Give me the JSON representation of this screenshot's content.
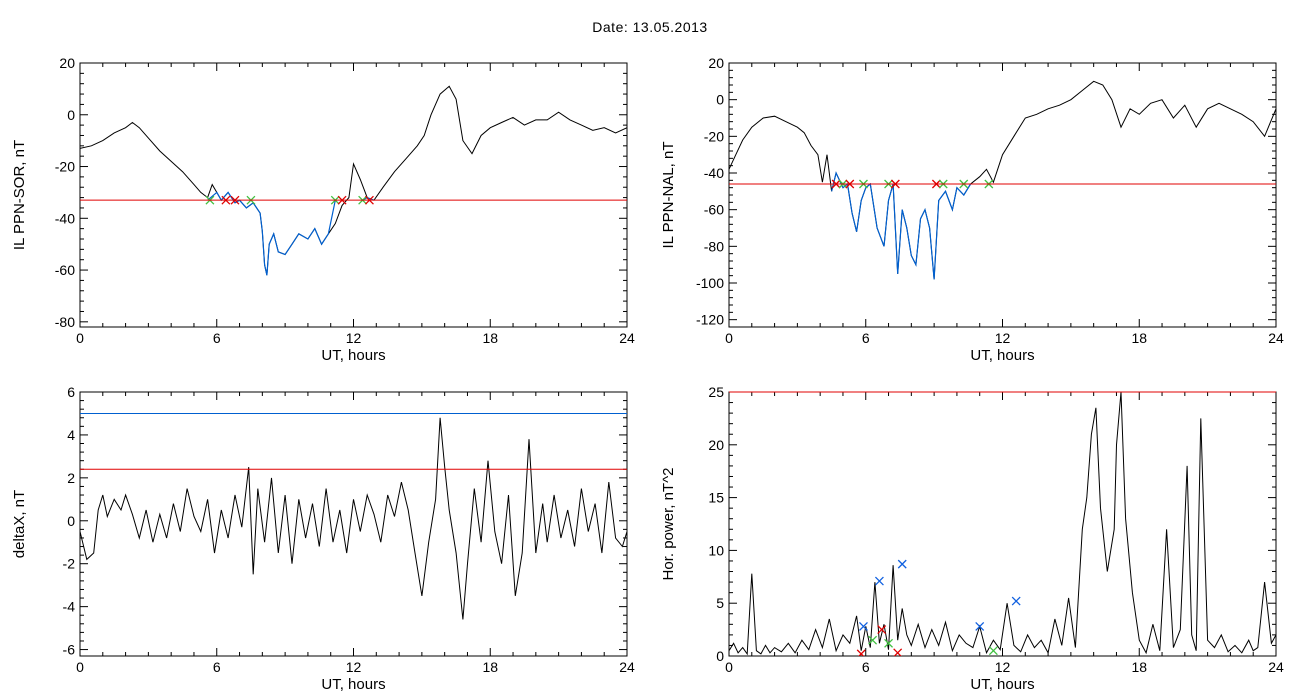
{
  "figure_title": "Date:  13.05.2013",
  "colors": {
    "trace": "#000000",
    "threshold_red": "#e00000",
    "threshold_blue": "#0060d0",
    "below_segment": "#0060d0",
    "cross_marker": "#1060e0",
    "green_marker": "#40c040",
    "red_marker": "#e00000"
  },
  "chart_data": [
    {
      "type": "line",
      "title": "",
      "xlabel": "UT, hours",
      "ylabel": "IL PPN-SOR, nT",
      "xlim": [
        0,
        24
      ],
      "ylim": [
        -82,
        20
      ],
      "xticks": [
        0,
        6,
        12,
        18,
        24
      ],
      "yticks": [
        -80,
        -60,
        -40,
        -20,
        0,
        20
      ],
      "series": [
        {
          "color": "#000000",
          "x": [
            0,
            0.5,
            1,
            1.5,
            2,
            2.3,
            2.6,
            3,
            3.5,
            4,
            4.5,
            5,
            5.3,
            5.6,
            5.8,
            6.0,
            6.2,
            6.5,
            6.8,
            7.0,
            7.3,
            7.6,
            7.9,
            8.0,
            8.1,
            8.2,
            8.3,
            8.5,
            8.7,
            9.0,
            9.3,
            9.6,
            10.0,
            10.3,
            10.6,
            10.9,
            11.2,
            11.5,
            11.8,
            12.0,
            12.3,
            12.6,
            12.9,
            13.3,
            13.8,
            14.3,
            14.8,
            15.1,
            15.4,
            15.8,
            16.2,
            16.5,
            16.8,
            17.2,
            17.6,
            18.0,
            18.5,
            19.0,
            19.5,
            20.0,
            20.5,
            21.0,
            21.5,
            22.0,
            22.5,
            23.0,
            23.5,
            24
          ],
          "y": [
            -13,
            -12,
            -10,
            -7,
            -5,
            -3,
            -5,
            -9,
            -14,
            -18,
            -22,
            -27,
            -30,
            -32,
            -27,
            -30,
            -33,
            -30,
            -34,
            -33,
            -36,
            -34,
            -38,
            -45,
            -58,
            -62,
            -50,
            -46,
            -53,
            -54,
            -50,
            -46,
            -48,
            -44,
            -50,
            -46,
            -42,
            -35,
            -32,
            -19,
            -25,
            -32,
            -33,
            -28,
            -22,
            -17,
            -12,
            -8,
            0,
            8,
            11,
            6,
            -10,
            -15,
            -8,
            -5,
            -3,
            -1,
            -4,
            -2,
            -2,
            1,
            -2,
            -4,
            -6,
            -5,
            -7,
            -5
          ]
        }
      ],
      "threshold_lines": [
        {
          "y": -33,
          "color": "#e00000"
        }
      ],
      "below_segments": [
        {
          "color": "#0060d0",
          "x": [
            5.6,
            6.0,
            6.2,
            6.5,
            6.8,
            7.0,
            7.3,
            7.6,
            7.9,
            8.0,
            8.1,
            8.2,
            8.3,
            8.5,
            8.7,
            9.0,
            9.3,
            9.6,
            10.0,
            10.3,
            10.6,
            10.9,
            11.2
          ],
          "y": [
            -33,
            -30,
            -33,
            -30,
            -34,
            -33,
            -36,
            -34,
            -38,
            -45,
            -58,
            -62,
            -50,
            -46,
            -53,
            -54,
            -50,
            -46,
            -48,
            -44,
            -50,
            -46,
            -33
          ]
        },
        {
          "color": "#0060d0",
          "x": [
            12.4,
            12.6,
            12.9
          ],
          "y": [
            -33,
            -32,
            -33
          ]
        }
      ],
      "markers": [
        {
          "x": 5.7,
          "y": -33,
          "color": "#40c040"
        },
        {
          "x": 6.4,
          "y": -33,
          "color": "#e00000"
        },
        {
          "x": 6.8,
          "y": -33,
          "color": "#e00000"
        },
        {
          "x": 7.5,
          "y": -33,
          "color": "#40c040"
        },
        {
          "x": 11.2,
          "y": -33,
          "color": "#40c040"
        },
        {
          "x": 11.5,
          "y": -33,
          "color": "#e00000"
        },
        {
          "x": 12.4,
          "y": -33,
          "color": "#40c040"
        },
        {
          "x": 12.7,
          "y": -33,
          "color": "#e00000"
        }
      ]
    },
    {
      "type": "line",
      "title": "",
      "xlabel": "UT, hours",
      "ylabel": "IL PPN-NAL, nT",
      "xlim": [
        0,
        24
      ],
      "ylim": [
        -124,
        20
      ],
      "xticks": [
        0,
        6,
        12,
        18,
        24
      ],
      "yticks": [
        -120,
        -100,
        -80,
        -60,
        -40,
        -20,
        0,
        20
      ],
      "series": [
        {
          "color": "#000000",
          "x": [
            0,
            0.3,
            0.6,
            1,
            1.5,
            2,
            2.5,
            3,
            3.3,
            3.6,
            3.9,
            4.1,
            4.3,
            4.5,
            4.7,
            5.0,
            5.2,
            5.4,
            5.6,
            5.8,
            6.0,
            6.2,
            6.5,
            6.8,
            7.0,
            7.2,
            7.4,
            7.6,
            7.8,
            8.0,
            8.2,
            8.4,
            8.6,
            8.8,
            9.0,
            9.2,
            9.5,
            9.8,
            10.0,
            10.3,
            10.6,
            11.0,
            11.3,
            11.6,
            12.0,
            12.5,
            13.0,
            13.5,
            14.0,
            14.5,
            15.0,
            15.5,
            16.0,
            16.4,
            16.8,
            17.2,
            17.6,
            18.0,
            18.5,
            19.0,
            19.5,
            20.0,
            20.5,
            21.0,
            21.5,
            22.0,
            22.5,
            23.0,
            23.5,
            24
          ],
          "y": [
            -38,
            -30,
            -22,
            -15,
            -10,
            -9,
            -12,
            -15,
            -18,
            -25,
            -30,
            -45,
            -30,
            -50,
            -40,
            -48,
            -46,
            -62,
            -72,
            -55,
            -48,
            -46,
            -70,
            -80,
            -55,
            -46,
            -95,
            -60,
            -70,
            -85,
            -90,
            -65,
            -60,
            -70,
            -98,
            -55,
            -50,
            -60,
            -48,
            -52,
            -46,
            -42,
            -38,
            -45,
            -30,
            -20,
            -10,
            -8,
            -5,
            -3,
            0,
            5,
            10,
            8,
            0,
            -15,
            -5,
            -8,
            -2,
            0,
            -10,
            -3,
            -15,
            -5,
            -2,
            -5,
            -8,
            -12,
            -20,
            -5
          ]
        }
      ],
      "threshold_lines": [
        {
          "y": -46,
          "color": "#e00000"
        }
      ],
      "below_segments": [
        {
          "color": "#0060d0",
          "x": [
            4.5,
            4.7,
            5.0,
            5.2,
            5.4,
            5.6,
            5.8,
            6.0,
            6.2,
            6.5,
            6.8,
            7.0,
            7.2,
            7.4,
            7.6,
            7.8,
            8.0,
            8.2,
            8.4,
            8.6,
            8.8,
            9.0,
            9.2,
            9.5,
            9.8,
            10.0,
            10.3,
            10.6
          ],
          "y": [
            -50,
            -40,
            -48,
            -46,
            -62,
            -72,
            -55,
            -48,
            -46,
            -70,
            -80,
            -55,
            -46,
            -95,
            -60,
            -70,
            -85,
            -90,
            -65,
            -60,
            -70,
            -98,
            -55,
            -50,
            -60,
            -48,
            -52,
            -46
          ]
        }
      ],
      "markers": [
        {
          "x": 4.7,
          "y": -46,
          "color": "#e00000"
        },
        {
          "x": 5.0,
          "y": -46,
          "color": "#40c040"
        },
        {
          "x": 5.3,
          "y": -46,
          "color": "#e00000"
        },
        {
          "x": 5.9,
          "y": -46,
          "color": "#40c040"
        },
        {
          "x": 7.0,
          "y": -46,
          "color": "#40c040"
        },
        {
          "x": 7.3,
          "y": -46,
          "color": "#e00000"
        },
        {
          "x": 9.1,
          "y": -46,
          "color": "#e00000"
        },
        {
          "x": 9.4,
          "y": -46,
          "color": "#40c040"
        },
        {
          "x": 10.3,
          "y": -46,
          "color": "#40c040"
        },
        {
          "x": 11.4,
          "y": -46,
          "color": "#40c040"
        }
      ]
    },
    {
      "type": "line",
      "title": "",
      "xlabel": "UT, hours",
      "ylabel": "deltaX, nT",
      "xlim": [
        0,
        24
      ],
      "ylim": [
        -6.3,
        6
      ],
      "xticks": [
        0,
        6,
        12,
        18,
        24
      ],
      "yticks": [
        -6,
        -4,
        -2,
        0,
        2,
        4,
        6
      ],
      "series": [
        {
          "color": "#000000",
          "x": [
            0,
            0.3,
            0.6,
            0.8,
            1.0,
            1.2,
            1.5,
            1.8,
            2.0,
            2.3,
            2.6,
            2.9,
            3.2,
            3.5,
            3.8,
            4.1,
            4.4,
            4.7,
            5.0,
            5.3,
            5.6,
            5.9,
            6.2,
            6.5,
            6.8,
            7.1,
            7.4,
            7.6,
            7.8,
            8.1,
            8.4,
            8.7,
            9.0,
            9.3,
            9.6,
            9.9,
            10.2,
            10.5,
            10.8,
            11.1,
            11.4,
            11.7,
            12.0,
            12.3,
            12.6,
            12.9,
            13.2,
            13.5,
            13.8,
            14.1,
            14.4,
            14.7,
            15.0,
            15.3,
            15.6,
            15.8,
            16.0,
            16.2,
            16.5,
            16.8,
            17.0,
            17.3,
            17.6,
            17.9,
            18.2,
            18.5,
            18.8,
            19.1,
            19.4,
            19.7,
            20.0,
            20.3,
            20.5,
            20.8,
            21.1,
            21.4,
            21.7,
            22.0,
            22.3,
            22.6,
            22.9,
            23.2,
            23.5,
            23.8,
            24
          ],
          "y": [
            -0.5,
            -1.8,
            -1.5,
            0.5,
            1.2,
            0.2,
            1.0,
            0.5,
            1.2,
            0.3,
            -0.8,
            0.5,
            -1.0,
            0.3,
            -0.8,
            0.8,
            -0.5,
            1.5,
            0.2,
            -0.5,
            1.0,
            -1.5,
            0.5,
            -0.8,
            1.2,
            -0.3,
            2.5,
            -2.5,
            1.5,
            -1.0,
            2.0,
            -1.5,
            1.2,
            -2.0,
            1.0,
            -0.8,
            0.8,
            -1.2,
            1.5,
            -1.0,
            0.5,
            -1.5,
            1.0,
            -0.5,
            1.2,
            0.3,
            -1.0,
            1.2,
            0.2,
            1.8,
            0.5,
            -1.5,
            -3.5,
            -1.0,
            1.0,
            4.8,
            2.5,
            0.5,
            -1.5,
            -4.6,
            -2.0,
            1.5,
            -1.0,
            2.8,
            -0.5,
            -2.0,
            1.2,
            -3.5,
            -1.5,
            3.8,
            -1.5,
            0.8,
            -1.0,
            1.2,
            -0.8,
            0.5,
            -1.2,
            1.5,
            -0.5,
            0.8,
            -1.5,
            1.8,
            -0.8,
            -1.2,
            -0.5
          ]
        }
      ],
      "threshold_lines": [
        {
          "y": 5.0,
          "color": "#0060d0"
        },
        {
          "y": 2.4,
          "color": "#e00000"
        }
      ],
      "below_segments": [],
      "markers": []
    },
    {
      "type": "line",
      "title": "",
      "xlabel": "UT, hours",
      "ylabel": "Hor. power, nT^2",
      "xlim": [
        0,
        24
      ],
      "ylim": [
        0,
        25
      ],
      "xticks": [
        0,
        6,
        12,
        18,
        24
      ],
      "yticks": [
        0,
        5,
        10,
        15,
        20,
        25
      ],
      "series": [
        {
          "color": "#000000",
          "x": [
            0,
            0.2,
            0.4,
            0.6,
            0.8,
            1.0,
            1.2,
            1.4,
            1.6,
            1.8,
            2.0,
            2.3,
            2.6,
            2.9,
            3.2,
            3.5,
            3.8,
            4.1,
            4.4,
            4.7,
            5.0,
            5.3,
            5.6,
            5.8,
            6.0,
            6.2,
            6.4,
            6.6,
            6.8,
            7.0,
            7.2,
            7.4,
            7.6,
            7.8,
            8.0,
            8.3,
            8.6,
            8.9,
            9.2,
            9.5,
            9.8,
            10.1,
            10.4,
            10.7,
            11.0,
            11.3,
            11.6,
            11.9,
            12.2,
            12.5,
            12.8,
            13.1,
            13.4,
            13.7,
            14.0,
            14.3,
            14.6,
            14.9,
            15.2,
            15.5,
            15.7,
            15.9,
            16.1,
            16.3,
            16.6,
            16.9,
            17.0,
            17.2,
            17.4,
            17.7,
            18.0,
            18.3,
            18.6,
            18.9,
            19.2,
            19.5,
            19.8,
            20.1,
            20.3,
            20.5,
            20.7,
            21.0,
            21.3,
            21.6,
            21.9,
            22.2,
            22.5,
            22.8,
            23.0,
            23.2,
            23.5,
            23.8,
            24
          ],
          "y": [
            0.5,
            1.2,
            0.3,
            0.8,
            0.2,
            7.8,
            0.5,
            0.2,
            1.0,
            0.3,
            0.8,
            0.4,
            1.2,
            0.3,
            1.5,
            0.6,
            2.5,
            0.8,
            3.5,
            0.5,
            2.0,
            1.2,
            3.8,
            0.5,
            2.8,
            0.8,
            7.0,
            1.2,
            3.0,
            0.6,
            8.6,
            1.5,
            4.5,
            2.0,
            1.0,
            3.0,
            0.8,
            2.5,
            1.0,
            3.2,
            0.5,
            2.0,
            1.2,
            0.8,
            2.8,
            0.3,
            1.5,
            0.6,
            5.0,
            1.0,
            0.4,
            2.0,
            0.8,
            1.5,
            0.3,
            3.5,
            1.0,
            5.5,
            0.8,
            12.0,
            15.0,
            21.0,
            23.5,
            14.0,
            8.0,
            12.0,
            20.0,
            25.0,
            13.0,
            6.0,
            1.5,
            0.3,
            3.0,
            0.5,
            12.0,
            0.8,
            2.5,
            18.0,
            2.0,
            0.5,
            22.5,
            1.5,
            0.8,
            2.0,
            0.4,
            1.0,
            0.3,
            1.5,
            0.5,
            0.8,
            7.0,
            1.2,
            2.0
          ]
        }
      ],
      "threshold_lines": [
        {
          "y": 25,
          "color": "#e00000"
        }
      ],
      "below_segments": [],
      "markers": [
        {
          "x": 5.9,
          "y": 2.8,
          "color": "#1060e0"
        },
        {
          "x": 6.6,
          "y": 7.1,
          "color": "#1060e0"
        },
        {
          "x": 7.6,
          "y": 8.7,
          "color": "#1060e0"
        },
        {
          "x": 11.0,
          "y": 2.8,
          "color": "#1060e0"
        },
        {
          "x": 12.6,
          "y": 5.2,
          "color": "#1060e0"
        },
        {
          "x": 5.8,
          "y": 0.2,
          "color": "#e00000"
        },
        {
          "x": 6.7,
          "y": 2.5,
          "color": "#e00000"
        },
        {
          "x": 7.4,
          "y": 0.3,
          "color": "#e00000"
        },
        {
          "x": 6.3,
          "y": 1.5,
          "color": "#40c040"
        },
        {
          "x": 7.0,
          "y": 1.2,
          "color": "#40c040"
        },
        {
          "x": 11.6,
          "y": 0.5,
          "color": "#40c040"
        }
      ]
    }
  ]
}
